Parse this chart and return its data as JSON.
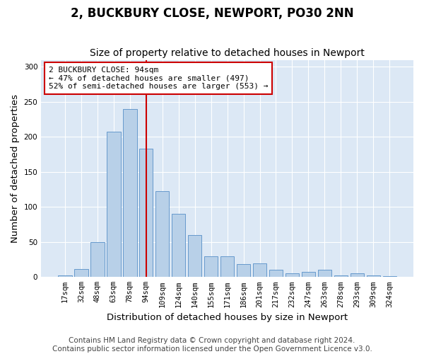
{
  "title": "2, BUCKBURY CLOSE, NEWPORT, PO30 2NN",
  "subtitle": "Size of property relative to detached houses in Newport",
  "xlabel": "Distribution of detached houses by size in Newport",
  "ylabel": "Number of detached properties",
  "categories": [
    "17sqm",
    "32sqm",
    "48sqm",
    "63sqm",
    "78sqm",
    "94sqm",
    "109sqm",
    "124sqm",
    "140sqm",
    "155sqm",
    "171sqm",
    "186sqm",
    "201sqm",
    "217sqm",
    "232sqm",
    "247sqm",
    "263sqm",
    "278sqm",
    "293sqm",
    "309sqm",
    "324sqm"
  ],
  "values": [
    2,
    11,
    50,
    207,
    240,
    183,
    123,
    90,
    60,
    30,
    30,
    18,
    20,
    10,
    5,
    7,
    10,
    2,
    5,
    2,
    1
  ],
  "bar_color": "#b8d0e8",
  "bar_edge_color": "#6699cc",
  "vline_x_index": 5,
  "vline_color": "#cc0000",
  "annotation_text": "2 BUCKBURY CLOSE: 94sqm\n← 47% of detached houses are smaller (497)\n52% of semi-detached houses are larger (553) →",
  "annotation_box_color": "#ffffff",
  "annotation_box_edge_color": "#cc0000",
  "ylim": [
    0,
    310
  ],
  "yticks": [
    0,
    50,
    100,
    150,
    200,
    250,
    300
  ],
  "footer_line1": "Contains HM Land Registry data © Crown copyright and database right 2024.",
  "footer_line2": "Contains public sector information licensed under the Open Government Licence v3.0.",
  "plot_bg_color": "#dce8f5",
  "title_fontsize": 12,
  "subtitle_fontsize": 10,
  "axis_label_fontsize": 9.5,
  "tick_fontsize": 7.5,
  "footer_fontsize": 7.5,
  "annotation_fontsize": 8,
  "vline_x_position": 5.0
}
